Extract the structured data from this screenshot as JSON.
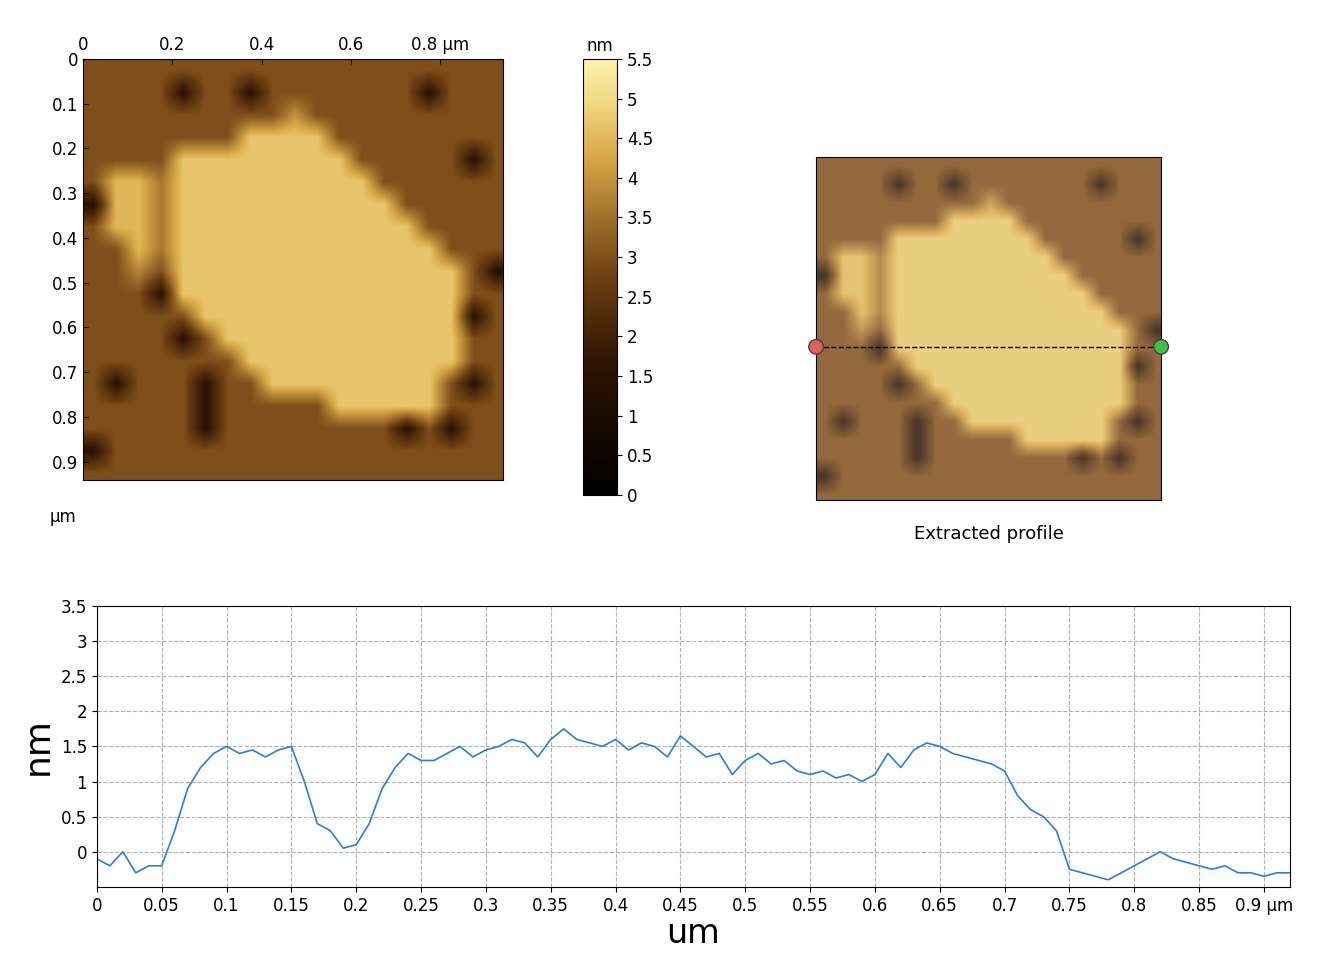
{
  "chart_data": [
    {
      "type": "heatmap",
      "xlim": [
        0,
        0.94
      ],
      "ylim": [
        0.94,
        0
      ],
      "xticks": [
        0,
        0.2,
        0.4,
        0.6,
        {
          "value": 0.8,
          "label": "0.8 µm"
        }
      ],
      "yticks": [
        0,
        0.1,
        0.2,
        0.3,
        0.4,
        0.5,
        0.6,
        0.7,
        0.8,
        0.9
      ],
      "ylabel": "µm",
      "cell_size": 0.05,
      "cells": [
        [
          3,
          3,
          3,
          3,
          3,
          3,
          3,
          3,
          3,
          3,
          3,
          3,
          3,
          3,
          3,
          3,
          3,
          3,
          3
        ],
        [
          3,
          3,
          3,
          3,
          1.5,
          3,
          3,
          1.5,
          3,
          3,
          3,
          3,
          3,
          3,
          3,
          1.5,
          3,
          3,
          3
        ],
        [
          3,
          3,
          3,
          3,
          3,
          3,
          3,
          3,
          3,
          4.0,
          3,
          3,
          3,
          3,
          3,
          3,
          3,
          3,
          3
        ],
        [
          3,
          3,
          3,
          3,
          3,
          3,
          3,
          4.7,
          4.7,
          4.7,
          4.7,
          3,
          3,
          3,
          3,
          3,
          3,
          3,
          3
        ],
        [
          3,
          3,
          3,
          3,
          4.7,
          4.7,
          4.7,
          4.7,
          4.7,
          4.7,
          4.7,
          4.7,
          3,
          3,
          3,
          3,
          3,
          1.5,
          3
        ],
        [
          3,
          4.5,
          4.5,
          3.6,
          4.7,
          4.7,
          4.7,
          4.7,
          4.7,
          4.7,
          4.7,
          4.7,
          4.7,
          3,
          3,
          3,
          3,
          3,
          3
        ],
        [
          1.5,
          4.5,
          4.5,
          3.6,
          4.7,
          4.7,
          4.7,
          4.7,
          4.7,
          4.7,
          4.7,
          4.7,
          4.7,
          4.7,
          3,
          3,
          3,
          3,
          3
        ],
        [
          3,
          4.5,
          4.5,
          3.6,
          4.7,
          4.7,
          4.7,
          4.7,
          4.7,
          4.7,
          4.7,
          4.7,
          4.7,
          4.7,
          4.7,
          3,
          3,
          3,
          3
        ],
        [
          3,
          3,
          4.5,
          3.6,
          4.7,
          4.7,
          4.7,
          4.7,
          4.7,
          4.7,
          4.7,
          4.7,
          4.7,
          4.7,
          4.7,
          4.7,
          3,
          3,
          3
        ],
        [
          3,
          3,
          3.8,
          3,
          4.7,
          4.7,
          4.7,
          4.7,
          4.7,
          4.7,
          4.7,
          4.7,
          4.7,
          4.7,
          4.7,
          4.7,
          4.7,
          3,
          1.5
        ],
        [
          3,
          3,
          3,
          1.5,
          4.7,
          4.7,
          4.7,
          4.7,
          4.7,
          4.7,
          4.7,
          4.7,
          4.7,
          4.7,
          4.7,
          4.7,
          4.7,
          3,
          3
        ],
        [
          3,
          3,
          3,
          3,
          3,
          4.7,
          4.7,
          4.7,
          4.7,
          4.7,
          4.7,
          4.7,
          4.7,
          4.7,
          4.7,
          4.7,
          4.7,
          1.5,
          3
        ],
        [
          3,
          3,
          3,
          3,
          1.5,
          3,
          4.7,
          4.7,
          4.7,
          4.7,
          4.7,
          4.7,
          4.7,
          4.7,
          4.7,
          4.7,
          4.7,
          3,
          3
        ],
        [
          3,
          3,
          3,
          3,
          3,
          3,
          3,
          4.7,
          4.7,
          4.7,
          4.7,
          4.7,
          4.7,
          4.7,
          4.7,
          4.7,
          4.7,
          3,
          3
        ],
        [
          3,
          1.5,
          3,
          3,
          3,
          1.5,
          3,
          3,
          4.7,
          4.7,
          4.7,
          4.7,
          4.7,
          4.7,
          4.7,
          4.7,
          3,
          1.5,
          3
        ],
        [
          3,
          3,
          3,
          3,
          3,
          1.5,
          3,
          3,
          3,
          3,
          3,
          4.7,
          4.7,
          4.7,
          4.7,
          4.7,
          3,
          3,
          3
        ],
        [
          3,
          3,
          3,
          3,
          3,
          1.5,
          3,
          3,
          3,
          3,
          3,
          3,
          3,
          3,
          1.5,
          3,
          1.5,
          3,
          3
        ],
        [
          1.5,
          3,
          3,
          3,
          3,
          3,
          3,
          3,
          3,
          3,
          3,
          3,
          3,
          3,
          3,
          3,
          3,
          3,
          3
        ],
        [
          3,
          3,
          3,
          3,
          3,
          3,
          3,
          3,
          3,
          3,
          3,
          3,
          3,
          3,
          3,
          3,
          3,
          3,
          3
        ]
      ],
      "colorbar": {
        "range": [
          0,
          5.5
        ],
        "ticks": [
          0,
          0.5,
          1,
          1.5,
          2,
          2.5,
          3,
          3.5,
          4,
          4.5,
          5,
          5.5
        ],
        "label": "nm"
      }
    },
    {
      "type": "heatmap",
      "title": "Extracted profile",
      "tick_labels": false,
      "xlim": [
        0,
        0.94
      ],
      "ylim": [
        0.94,
        0
      ],
      "profile_line": {
        "x": [
          0,
          0.94
        ],
        "y": 0.52,
        "line_style": "dashed",
        "colors": [
          "#e06060",
          "#40c040"
        ]
      }
    },
    {
      "type": "line",
      "xlabel": "um",
      "ylabel": "nm",
      "grid": true,
      "xlim": [
        0,
        0.92
      ],
      "ylim": [
        -0.5,
        3.5
      ],
      "xticks": [
        0,
        0.05,
        0.1,
        0.15,
        0.2,
        0.25,
        0.3,
        0.35,
        0.4,
        0.45,
        0.5,
        0.55,
        0.6,
        0.65,
        0.7,
        0.75,
        0.8,
        0.85,
        {
          "value": 0.9,
          "label": "0.9 µm"
        }
      ],
      "yticks": [
        0,
        0.5,
        1,
        1.5,
        2,
        2.5,
        3,
        3.5
      ],
      "color": "#2a7fd4",
      "x": [
        0,
        0.01,
        0.02,
        0.03,
        0.04,
        0.05,
        0.06,
        0.07,
        0.08,
        0.09,
        0.1,
        0.11,
        0.12,
        0.13,
        0.14,
        0.15,
        0.16,
        0.17,
        0.18,
        0.19,
        0.2,
        0.21,
        0.22,
        0.23,
        0.24,
        0.25,
        0.26,
        0.27,
        0.28,
        0.29,
        0.3,
        0.31,
        0.32,
        0.33,
        0.34,
        0.35,
        0.36,
        0.37,
        0.38,
        0.39,
        0.4,
        0.41,
        0.42,
        0.43,
        0.44,
        0.45,
        0.46,
        0.47,
        0.48,
        0.49,
        0.5,
        0.51,
        0.52,
        0.53,
        0.54,
        0.55,
        0.56,
        0.57,
        0.58,
        0.59,
        0.6,
        0.61,
        0.62,
        0.63,
        0.64,
        0.65,
        0.66,
        0.67,
        0.68,
        0.69,
        0.7,
        0.71,
        0.72,
        0.73,
        0.74,
        0.75,
        0.76,
        0.77,
        0.78,
        0.79,
        0.8,
        0.81,
        0.82,
        0.83,
        0.84,
        0.85,
        0.86,
        0.87,
        0.88,
        0.89,
        0.9,
        0.91,
        0.92
      ],
      "values": [
        -0.1,
        -0.2,
        0.0,
        -0.3,
        -0.2,
        -0.2,
        0.3,
        0.9,
        1.2,
        1.4,
        1.5,
        1.4,
        1.45,
        1.35,
        1.45,
        1.5,
        1.0,
        0.4,
        0.3,
        0.05,
        0.1,
        0.4,
        0.9,
        1.2,
        1.4,
        1.3,
        1.3,
        1.4,
        1.5,
        1.35,
        1.45,
        1.5,
        1.6,
        1.55,
        1.35,
        1.6,
        1.75,
        1.6,
        1.55,
        1.5,
        1.6,
        1.45,
        1.55,
        1.5,
        1.35,
        1.65,
        1.5,
        1.35,
        1.4,
        1.1,
        1.3,
        1.4,
        1.25,
        1.3,
        1.15,
        1.1,
        1.15,
        1.05,
        1.1,
        1.0,
        1.1,
        1.4,
        1.2,
        1.45,
        1.55,
        1.5,
        1.4,
        1.35,
        1.3,
        1.25,
        1.15,
        0.8,
        0.6,
        0.5,
        0.3,
        -0.25,
        -0.3,
        -0.35,
        -0.4,
        -0.3,
        -0.2,
        -0.1,
        0.0,
        -0.1,
        -0.15,
        -0.2,
        -0.25,
        -0.2,
        -0.3,
        -0.3,
        -0.35,
        -0.3,
        -0.3
      ]
    }
  ]
}
